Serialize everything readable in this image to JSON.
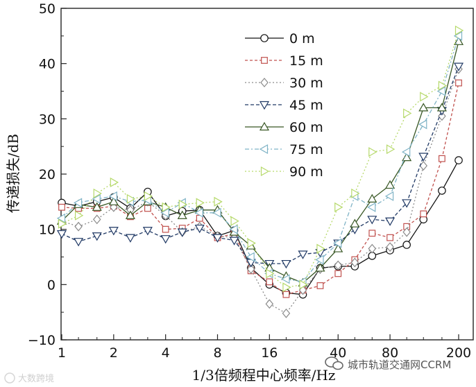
{
  "chart_data": {
    "type": "line",
    "xlabel": "1/3倍频程中心频率/Hz",
    "ylabel": "传递损失/dB",
    "x_scale": "log",
    "x": [
      1,
      1.25,
      1.6,
      2,
      2.5,
      3.15,
      4,
      5,
      6.3,
      8,
      10,
      12.5,
      16,
      20,
      25,
      31.5,
      40,
      50,
      63,
      80,
      100,
      125,
      160,
      200
    ],
    "xticks": [
      1,
      2,
      4,
      8,
      16,
      40,
      80,
      200
    ],
    "xtick_labels": [
      "1",
      "2",
      "4",
      "8",
      "16",
      "40",
      "80",
      "200"
    ],
    "xlim": [
      1,
      200
    ],
    "ylim": [
      -10,
      50
    ],
    "yticks": [
      -10,
      0,
      10,
      20,
      30,
      40,
      50
    ],
    "ytick_labels": [
      "−10",
      "0",
      "10",
      "20",
      "30",
      "40",
      "50"
    ],
    "grid": false,
    "legend_position": "top-center",
    "series": [
      {
        "name": "0 m",
        "color": "#111111",
        "dash": "none",
        "marker": "circle",
        "values": [
          14.8,
          14.2,
          15.0,
          15.8,
          13.8,
          16.8,
          12.4,
          13.3,
          13.5,
          8.8,
          9.8,
          3.0,
          0.0,
          -1.5,
          -1.8,
          3.0,
          3.3,
          3.3,
          5.2,
          6.2,
          7.2,
          11.8,
          17.0,
          22.5
        ]
      },
      {
        "name": "15 m",
        "color": "#c0504d",
        "dash": "4,3",
        "marker": "square",
        "values": [
          14.0,
          13.8,
          13.8,
          14.2,
          12.3,
          13.8,
          10.0,
          10.2,
          12.0,
          8.5,
          9.2,
          2.5,
          0.5,
          -1.8,
          -1.0,
          -0.2,
          2.0,
          4.5,
          9.3,
          8.5,
          10.5,
          12.8,
          22.8,
          36.5
        ]
      },
      {
        "name": "30 m",
        "color": "#8a8a8a",
        "dash": "2,3",
        "marker": "diamond",
        "values": [
          11.5,
          10.5,
          11.8,
          14.0,
          13.5,
          15.0,
          12.5,
          9.5,
          10.5,
          8.8,
          8.5,
          2.8,
          -3.5,
          -5.2,
          -1.0,
          2.8,
          3.5,
          4.0,
          6.5,
          6.8,
          9.5,
          21.5,
          30.5,
          39.0
        ]
      },
      {
        "name": "45 m",
        "color": "#1f3864",
        "dash": "5,3",
        "marker": "tri-down",
        "values": [
          9.2,
          7.8,
          8.8,
          9.8,
          8.5,
          9.8,
          8.3,
          9.5,
          10.2,
          8.5,
          8.0,
          4.0,
          3.8,
          3.8,
          5.5,
          5.8,
          7.5,
          10.0,
          11.8,
          11.5,
          14.8,
          23.2,
          31.5,
          39.5
        ]
      },
      {
        "name": "60 m",
        "color": "#375623",
        "dash": "none",
        "marker": "tri-up",
        "values": [
          11.5,
          14.5,
          14.0,
          15.0,
          12.5,
          15.0,
          14.0,
          12.5,
          13.5,
          13.5,
          9.5,
          7.0,
          3.0,
          1.5,
          0.3,
          3.0,
          6.5,
          11.0,
          15.5,
          18.0,
          23.0,
          32.0,
          32.0,
          44.0
        ]
      },
      {
        "name": "75 m",
        "color": "#7fb3c6",
        "dash": "6,3,2,3",
        "marker": "tri-left",
        "values": [
          12.0,
          14.8,
          15.5,
          16.0,
          15.0,
          15.3,
          13.0,
          14.8,
          13.0,
          13.0,
          10.0,
          5.0,
          2.0,
          1.0,
          0.5,
          4.5,
          7.5,
          16.0,
          14.0,
          16.0,
          24.0,
          29.0,
          35.0,
          45.0
        ]
      },
      {
        "name": "90 m",
        "color": "#b6d96b",
        "dash": "2,3",
        "marker": "tri-right",
        "values": [
          11.0,
          12.5,
          16.5,
          18.5,
          15.5,
          16.0,
          14.0,
          14.5,
          14.8,
          15.0,
          11.5,
          7.5,
          2.0,
          -0.5,
          0.0,
          6.5,
          14.0,
          16.5,
          24.0,
          24.5,
          31.0,
          34.0,
          36.0,
          46.0
        ]
      }
    ]
  },
  "watermark": {
    "left_text": "大数跨境",
    "right_text": "城市轨道交通网CCRM"
  }
}
